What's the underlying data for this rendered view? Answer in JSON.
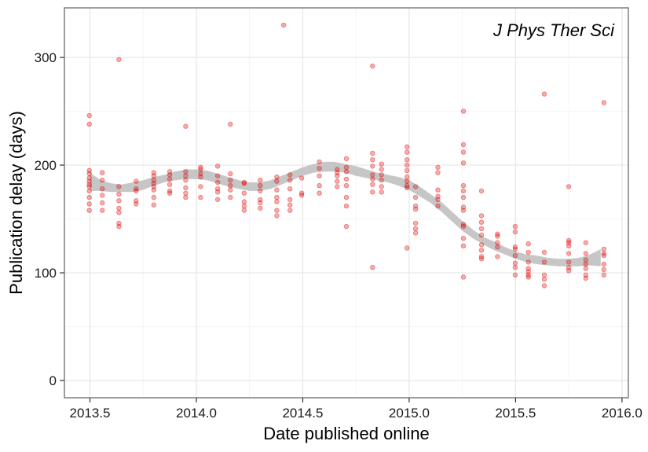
{
  "chart_data": {
    "type": "scatter",
    "title": "",
    "annotation": "J Phys Ther Sci",
    "xlabel": "Date published online",
    "ylabel": "Publication delay (days)",
    "xlim": [
      2013.38,
      2016.03
    ],
    "ylim": [
      -16,
      346
    ],
    "x_ticks": [
      2013.5,
      2014.0,
      2014.5,
      2015.0,
      2015.5,
      2016.0
    ],
    "x_tick_labels": [
      "2013.5",
      "2014.0",
      "2014.5",
      "2015.0",
      "2015.5",
      "2016.0"
    ],
    "y_ticks": [
      0,
      100,
      200,
      300
    ],
    "y_tick_labels": [
      "0",
      "100",
      "200",
      "300"
    ],
    "grid": true,
    "point_color": "#e00000",
    "smooth_band_color": "#c6c6c6",
    "points": [
      [
        2013.497,
        246
      ],
      [
        2013.497,
        238
      ],
      [
        2013.497,
        195
      ],
      [
        2013.497,
        192
      ],
      [
        2013.497,
        188
      ],
      [
        2013.497,
        185
      ],
      [
        2013.497,
        182
      ],
      [
        2013.497,
        180
      ],
      [
        2013.497,
        176
      ],
      [
        2013.497,
        170
      ],
      [
        2013.497,
        164
      ],
      [
        2013.497,
        158
      ],
      [
        2013.558,
        193
      ],
      [
        2013.558,
        186
      ],
      [
        2013.558,
        178
      ],
      [
        2013.558,
        172
      ],
      [
        2013.558,
        165
      ],
      [
        2013.558,
        158
      ],
      [
        2013.636,
        298
      ],
      [
        2013.636,
        180
      ],
      [
        2013.636,
        173
      ],
      [
        2013.636,
        167
      ],
      [
        2013.636,
        160
      ],
      [
        2013.636,
        156
      ],
      [
        2013.636,
        146
      ],
      [
        2013.636,
        143
      ],
      [
        2013.717,
        185
      ],
      [
        2013.717,
        178
      ],
      [
        2013.717,
        176
      ],
      [
        2013.717,
        167
      ],
      [
        2013.717,
        164
      ],
      [
        2013.8,
        193
      ],
      [
        2013.8,
        190
      ],
      [
        2013.8,
        186
      ],
      [
        2013.8,
        183
      ],
      [
        2013.8,
        180
      ],
      [
        2013.8,
        177
      ],
      [
        2013.8,
        170
      ],
      [
        2013.8,
        163
      ],
      [
        2013.875,
        194
      ],
      [
        2013.875,
        191
      ],
      [
        2013.875,
        187
      ],
      [
        2013.875,
        182
      ],
      [
        2013.875,
        176
      ],
      [
        2013.875,
        174
      ],
      [
        2013.95,
        236
      ],
      [
        2013.95,
        194
      ],
      [
        2013.95,
        190
      ],
      [
        2013.95,
        186
      ],
      [
        2013.95,
        179
      ],
      [
        2013.95,
        174
      ],
      [
        2013.95,
        170
      ],
      [
        2014.02,
        198
      ],
      [
        2014.02,
        196
      ],
      [
        2014.02,
        192
      ],
      [
        2014.02,
        189
      ],
      [
        2014.02,
        180
      ],
      [
        2014.02,
        170
      ],
      [
        2014.1,
        199
      ],
      [
        2014.1,
        190
      ],
      [
        2014.1,
        184
      ],
      [
        2014.1,
        178
      ],
      [
        2014.1,
        175
      ],
      [
        2014.1,
        168
      ],
      [
        2014.16,
        238
      ],
      [
        2014.16,
        192
      ],
      [
        2014.16,
        186
      ],
      [
        2014.16,
        181
      ],
      [
        2014.16,
        177
      ],
      [
        2014.16,
        170
      ],
      [
        2014.225,
        184
      ],
      [
        2014.225,
        183
      ],
      [
        2014.225,
        174
      ],
      [
        2014.225,
        166
      ],
      [
        2014.225,
        162
      ],
      [
        2014.225,
        158
      ],
      [
        2014.3,
        186
      ],
      [
        2014.3,
        181
      ],
      [
        2014.3,
        176
      ],
      [
        2014.3,
        168
      ],
      [
        2014.3,
        165
      ],
      [
        2014.3,
        160
      ],
      [
        2014.378,
        189
      ],
      [
        2014.378,
        185
      ],
      [
        2014.378,
        177
      ],
      [
        2014.378,
        170
      ],
      [
        2014.378,
        166
      ],
      [
        2014.378,
        158
      ],
      [
        2014.378,
        153
      ],
      [
        2014.41,
        330
      ],
      [
        2014.44,
        191
      ],
      [
        2014.44,
        186
      ],
      [
        2014.44,
        178
      ],
      [
        2014.44,
        168
      ],
      [
        2014.44,
        163
      ],
      [
        2014.44,
        158
      ],
      [
        2014.495,
        188
      ],
      [
        2014.495,
        174
      ],
      [
        2014.495,
        172
      ],
      [
        2014.578,
        203
      ],
      [
        2014.578,
        197
      ],
      [
        2014.578,
        190
      ],
      [
        2014.578,
        181
      ],
      [
        2014.578,
        174
      ],
      [
        2014.662,
        196
      ],
      [
        2014.662,
        193
      ],
      [
        2014.662,
        190
      ],
      [
        2014.662,
        185
      ],
      [
        2014.662,
        180
      ],
      [
        2014.705,
        206
      ],
      [
        2014.705,
        198
      ],
      [
        2014.705,
        194
      ],
      [
        2014.705,
        187
      ],
      [
        2014.705,
        181
      ],
      [
        2014.705,
        170
      ],
      [
        2014.705,
        162
      ],
      [
        2014.705,
        143
      ],
      [
        2014.828,
        292
      ],
      [
        2014.828,
        211
      ],
      [
        2014.828,
        205
      ],
      [
        2014.828,
        199
      ],
      [
        2014.828,
        191
      ],
      [
        2014.828,
        187
      ],
      [
        2014.828,
        182
      ],
      [
        2014.828,
        175
      ],
      [
        2014.828,
        105
      ],
      [
        2014.87,
        201
      ],
      [
        2014.87,
        196
      ],
      [
        2014.87,
        191
      ],
      [
        2014.87,
        186
      ],
      [
        2014.87,
        180
      ],
      [
        2014.87,
        175
      ],
      [
        2014.99,
        217
      ],
      [
        2014.99,
        212
      ],
      [
        2014.99,
        205
      ],
      [
        2014.99,
        200
      ],
      [
        2014.99,
        195
      ],
      [
        2014.99,
        189
      ],
      [
        2014.99,
        185
      ],
      [
        2014.99,
        181
      ],
      [
        2014.99,
        179
      ],
      [
        2014.99,
        123
      ],
      [
        2015.03,
        180
      ],
      [
        2015.03,
        170
      ],
      [
        2015.03,
        162
      ],
      [
        2015.03,
        159
      ],
      [
        2015.03,
        146
      ],
      [
        2015.03,
        141
      ],
      [
        2015.03,
        137
      ],
      [
        2015.135,
        198
      ],
      [
        2015.135,
        193
      ],
      [
        2015.135,
        177
      ],
      [
        2015.135,
        171
      ],
      [
        2015.135,
        168
      ],
      [
        2015.135,
        162
      ],
      [
        2015.255,
        250
      ],
      [
        2015.255,
        219
      ],
      [
        2015.255,
        212
      ],
      [
        2015.255,
        202
      ],
      [
        2015.255,
        181
      ],
      [
        2015.255,
        176
      ],
      [
        2015.255,
        170
      ],
      [
        2015.255,
        161
      ],
      [
        2015.255,
        158
      ],
      [
        2015.255,
        145
      ],
      [
        2015.255,
        143
      ],
      [
        2015.255,
        132
      ],
      [
        2015.255,
        125
      ],
      [
        2015.255,
        96
      ],
      [
        2015.34,
        176
      ],
      [
        2015.34,
        153
      ],
      [
        2015.34,
        147
      ],
      [
        2015.34,
        141
      ],
      [
        2015.34,
        135
      ],
      [
        2015.34,
        126
      ],
      [
        2015.34,
        121
      ],
      [
        2015.34,
        115
      ],
      [
        2015.34,
        113
      ],
      [
        2015.415,
        136
      ],
      [
        2015.415,
        134
      ],
      [
        2015.415,
        128
      ],
      [
        2015.415,
        124
      ],
      [
        2015.415,
        115
      ],
      [
        2015.498,
        143
      ],
      [
        2015.498,
        138
      ],
      [
        2015.498,
        124
      ],
      [
        2015.498,
        122
      ],
      [
        2015.498,
        116
      ],
      [
        2015.498,
        109
      ],
      [
        2015.498,
        105
      ],
      [
        2015.498,
        98
      ],
      [
        2015.56,
        127
      ],
      [
        2015.56,
        119
      ],
      [
        2015.56,
        110
      ],
      [
        2015.56,
        104
      ],
      [
        2015.56,
        101
      ],
      [
        2015.56,
        98
      ],
      [
        2015.56,
        96
      ],
      [
        2015.635,
        266
      ],
      [
        2015.635,
        119
      ],
      [
        2015.635,
        110
      ],
      [
        2015.635,
        98
      ],
      [
        2015.635,
        94
      ],
      [
        2015.635,
        88
      ],
      [
        2015.75,
        180
      ],
      [
        2015.75,
        130
      ],
      [
        2015.75,
        128
      ],
      [
        2015.75,
        125
      ],
      [
        2015.75,
        118
      ],
      [
        2015.75,
        110
      ],
      [
        2015.75,
        105
      ],
      [
        2015.75,
        102
      ],
      [
        2015.83,
        128
      ],
      [
        2015.83,
        118
      ],
      [
        2015.83,
        112
      ],
      [
        2015.83,
        108
      ],
      [
        2015.83,
        104
      ],
      [
        2015.83,
        98
      ],
      [
        2015.83,
        95
      ],
      [
        2015.915,
        258
      ],
      [
        2015.915,
        122
      ],
      [
        2015.915,
        118
      ],
      [
        2015.915,
        116
      ],
      [
        2015.915,
        108
      ],
      [
        2015.915,
        103
      ],
      [
        2015.915,
        98
      ]
    ],
    "smooth_band": [
      [
        2013.5,
        176,
        193
      ],
      [
        2013.55,
        176,
        186
      ],
      [
        2013.6,
        175,
        183
      ],
      [
        2013.65,
        175,
        182
      ],
      [
        2013.7,
        175,
        184
      ],
      [
        2013.75,
        177,
        186
      ],
      [
        2013.8,
        181,
        189
      ],
      [
        2013.85,
        184,
        191
      ],
      [
        2013.9,
        186,
        194
      ],
      [
        2013.95,
        187,
        196
      ],
      [
        2014.0,
        187,
        196
      ],
      [
        2014.05,
        186,
        195
      ],
      [
        2014.1,
        183,
        192
      ],
      [
        2014.15,
        180,
        189
      ],
      [
        2014.2,
        178,
        186
      ],
      [
        2014.25,
        176,
        184
      ],
      [
        2014.3,
        176,
        184
      ],
      [
        2014.35,
        178,
        186
      ],
      [
        2014.4,
        182,
        190
      ],
      [
        2014.45,
        186,
        194
      ],
      [
        2014.5,
        190,
        198
      ],
      [
        2014.55,
        193,
        201
      ],
      [
        2014.6,
        194,
        203
      ],
      [
        2014.65,
        194,
        203
      ],
      [
        2014.7,
        193,
        201
      ],
      [
        2014.75,
        190,
        199
      ],
      [
        2014.8,
        188,
        196
      ],
      [
        2014.85,
        186,
        193
      ],
      [
        2014.9,
        184,
        191
      ],
      [
        2014.95,
        181,
        189
      ],
      [
        2015.0,
        177,
        186
      ],
      [
        2015.05,
        171,
        180
      ],
      [
        2015.1,
        165,
        173
      ],
      [
        2015.15,
        157,
        166
      ],
      [
        2015.2,
        148,
        157
      ],
      [
        2015.25,
        139,
        148
      ],
      [
        2015.3,
        132,
        140
      ],
      [
        2015.35,
        126,
        133
      ],
      [
        2015.4,
        121,
        129
      ],
      [
        2015.45,
        117,
        124
      ],
      [
        2015.5,
        113,
        120
      ],
      [
        2015.55,
        110,
        117
      ],
      [
        2015.6,
        108,
        116
      ],
      [
        2015.65,
        107,
        114
      ],
      [
        2015.7,
        106,
        113
      ],
      [
        2015.75,
        106,
        113
      ],
      [
        2015.8,
        106,
        114
      ],
      [
        2015.85,
        107,
        117
      ],
      [
        2015.9,
        106,
        122
      ]
    ]
  }
}
